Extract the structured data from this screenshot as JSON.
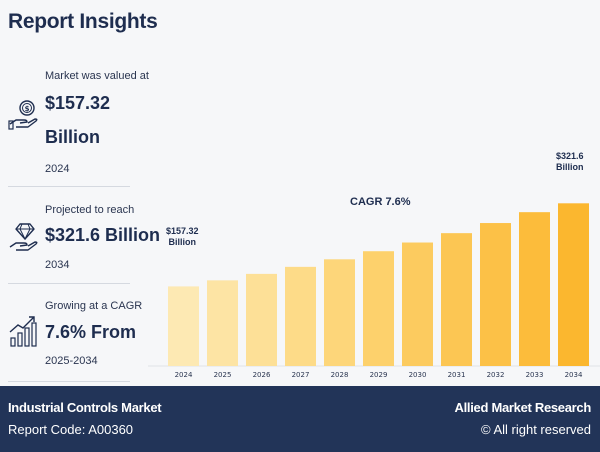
{
  "header": {
    "title": "Report Insights"
  },
  "stats": [
    {
      "label": "Market was valued at",
      "value_line1": "$157.32",
      "value_line2": "Billion",
      "year": "2024",
      "icon": "money-hand-icon"
    },
    {
      "label": "Projected to reach",
      "value_line1": "$321.6 Billion",
      "year": "2034",
      "icon": "diamond-hand-icon"
    },
    {
      "label": "Growing at a CAGR",
      "value_line1": "7.6% From",
      "year": "2025-2034",
      "icon": "growth-chart-icon"
    }
  ],
  "chart_data": {
    "type": "bar",
    "title": "CAGR 7.6%",
    "categories": [
      "2024",
      "2025",
      "2026",
      "2027",
      "2028",
      "2029",
      "2030",
      "2031",
      "2032",
      "2033",
      "2034"
    ],
    "values": [
      157.32,
      169.3,
      182.1,
      196.0,
      210.9,
      226.9,
      244.1,
      262.6,
      282.6,
      304.1,
      321.6
    ],
    "ylim": [
      0,
      340
    ],
    "xlabel": "",
    "ylabel": "",
    "start_label": [
      "$157.32",
      "Billion"
    ],
    "end_label": [
      "$321.6",
      "Billion"
    ],
    "bar_colors": [
      "#fde9b3",
      "#fde4a4",
      "#fde097",
      "#fddb88",
      "#fdd67a",
      "#fdd16c",
      "#fccb5f",
      "#fcc653",
      "#fcc147",
      "#fcbc3b",
      "#fbb72f"
    ]
  },
  "footer": {
    "report_name": "Industrial Controls Market",
    "report_code": "Report Code: A00360",
    "brand": "Allied Market Research",
    "rights": "© All right reserved"
  }
}
